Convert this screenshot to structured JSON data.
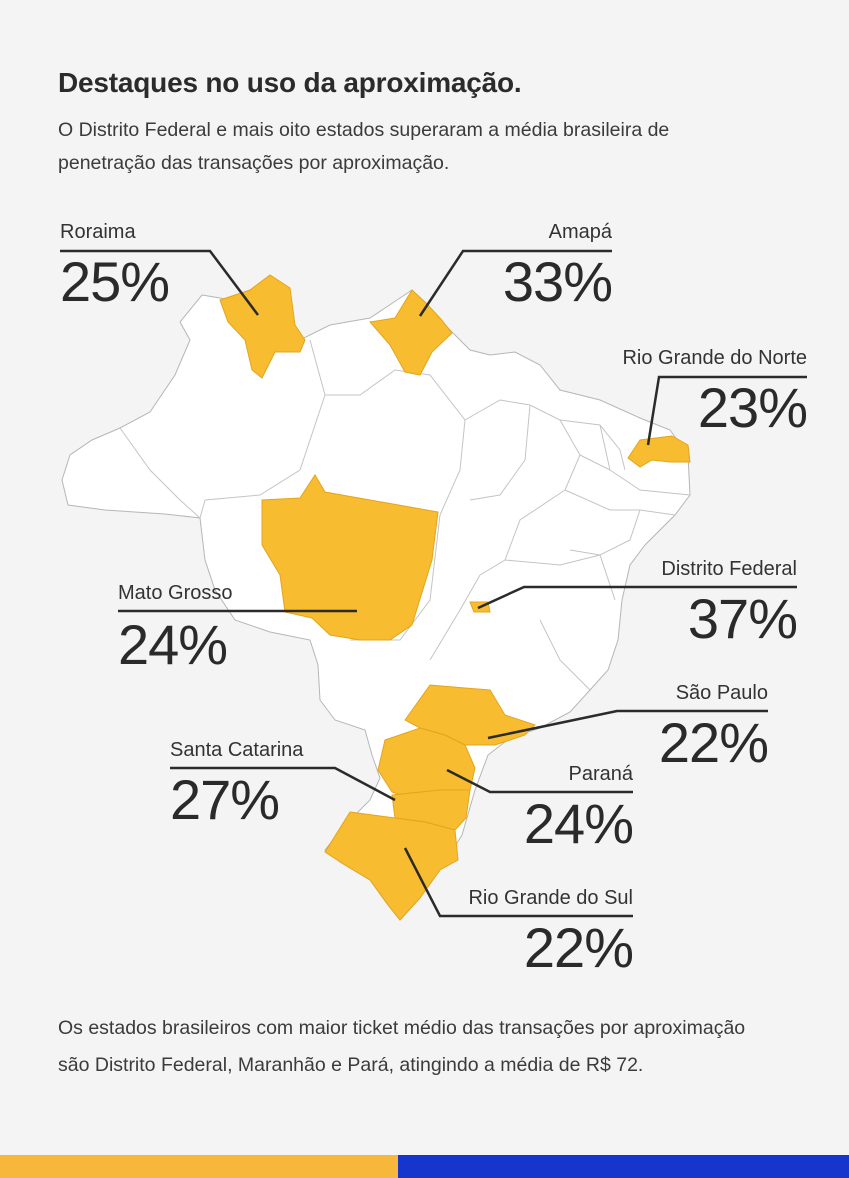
{
  "heading": "Destaques no uso da aproximação.",
  "intro": "O Distrito Federal e mais oito estados superaram a média brasileira de penetração das transações por aproximação.",
  "footer": "Os estados brasileiros com maior ticket médio das transações por aproximação são Distrito Federal, Maranhão e Pará, atingindo a média de R$ 72.",
  "colors": {
    "highlight": "#f7bc2f",
    "other_state": "#ffffff",
    "border": "#b6b6b6",
    "leader_line": "#2b2b2b",
    "bottom_bar_left": "#f7b73b",
    "bottom_bar_right": "#1535cc"
  },
  "states": [
    {
      "name": "Roraima",
      "value": "25%"
    },
    {
      "name": "Amapá",
      "value": "33%"
    },
    {
      "name": "Rio Grande do Norte",
      "value": "23%"
    },
    {
      "name": "Mato Grosso",
      "value": "24%"
    },
    {
      "name": "Distrito Federal",
      "value": "37%"
    },
    {
      "name": "São Paulo",
      "value": "22%"
    },
    {
      "name": "Santa Catarina",
      "value": "27%"
    },
    {
      "name": "Paraná",
      "value": "24%"
    },
    {
      "name": "Rio Grande do Sul",
      "value": "22%"
    }
  ]
}
